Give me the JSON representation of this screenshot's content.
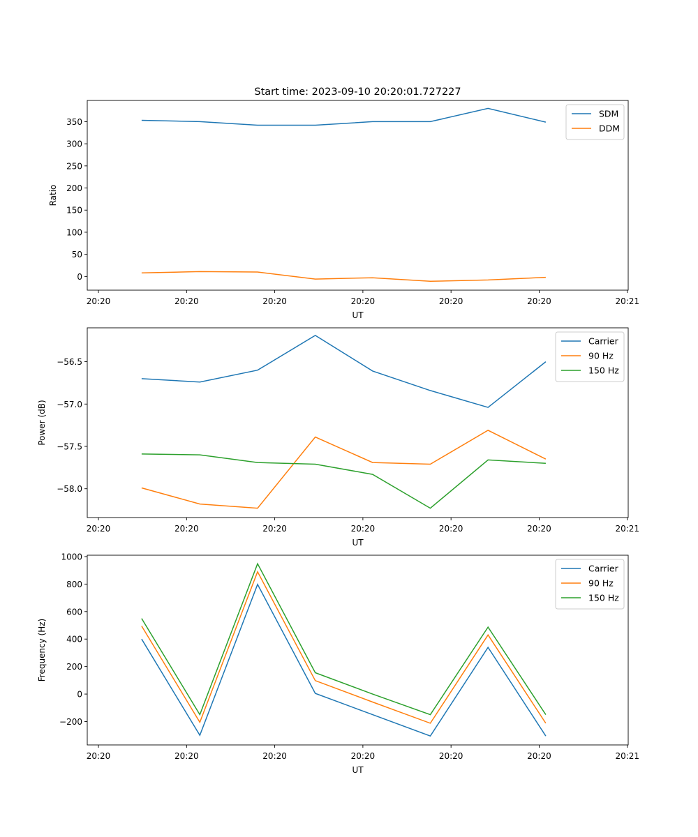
{
  "chart_data": [
    {
      "type": "line",
      "title": "Start time: 2023-09-10 20:20:01.727227",
      "xlabel": "UT",
      "ylabel": "Ratio",
      "x_unit": "seconds after 20:20:00",
      "x": [
        4.9,
        11.5,
        18.05,
        24.6,
        31.1,
        37.65,
        44.2,
        50.75
      ],
      "xlim": [
        -1.27,
        60.1
      ],
      "ylim": [
        -31,
        398
      ],
      "xticks": [
        0,
        10,
        20,
        30,
        40,
        50,
        60
      ],
      "xtick_labels": [
        "20:20",
        "20:20",
        "20:20",
        "20:20",
        "20:20",
        "20:20",
        "20:21"
      ],
      "yticks": [
        0,
        50,
        100,
        150,
        200,
        250,
        300,
        350
      ],
      "ytick_labels": [
        "0",
        "50",
        "100",
        "150",
        "200",
        "250",
        "300",
        "350"
      ],
      "legend": "top-right",
      "series": [
        {
          "name": "SDM",
          "color": "#1f77b4",
          "values": [
            353,
            350,
            342,
            342,
            350,
            350,
            380,
            349
          ]
        },
        {
          "name": "DDM",
          "color": "#ff7f0e",
          "values": [
            8,
            11,
            10,
            -6,
            -3,
            -11,
            -8,
            -2
          ]
        }
      ]
    },
    {
      "type": "line",
      "title": "",
      "xlabel": "UT",
      "ylabel": "Power (dB)",
      "x_unit": "seconds after 20:20:00",
      "x": [
        4.9,
        11.5,
        18.05,
        24.6,
        31.1,
        37.65,
        44.2,
        50.75
      ],
      "xlim": [
        -1.27,
        60.1
      ],
      "ylim": [
        -58.34,
        -56.1
      ],
      "xticks": [
        0,
        10,
        20,
        30,
        40,
        50,
        60
      ],
      "xtick_labels": [
        "20:20",
        "20:20",
        "20:20",
        "20:20",
        "20:20",
        "20:20",
        "20:21"
      ],
      "yticks": [
        -58.0,
        -57.5,
        -57.0,
        -56.5
      ],
      "ytick_labels": [
        "−58.0",
        "−57.5",
        "−57.0",
        "−56.5"
      ],
      "legend": "top-right",
      "series": [
        {
          "name": "Carrier",
          "color": "#1f77b4",
          "values": [
            -56.7,
            -56.74,
            -56.6,
            -56.19,
            -56.61,
            -56.84,
            -57.04,
            -56.5
          ]
        },
        {
          "name": "90 Hz",
          "color": "#ff7f0e",
          "values": [
            -57.99,
            -58.18,
            -58.23,
            -57.39,
            -57.69,
            -57.71,
            -57.31,
            -57.65
          ]
        },
        {
          "name": "150 Hz",
          "color": "#2ca02c",
          "values": [
            -57.59,
            -57.6,
            -57.69,
            -57.71,
            -57.83,
            -58.23,
            -57.66,
            -57.7
          ]
        }
      ]
    },
    {
      "type": "line",
      "title": "",
      "xlabel": "UT",
      "ylabel": "Frequency (Hz)",
      "x_unit": "seconds after 20:20:00",
      "x": [
        4.9,
        11.5,
        18.05,
        24.6,
        31.1,
        37.65,
        44.2,
        50.75
      ],
      "xlim": [
        -1.27,
        60.1
      ],
      "ylim": [
        -370,
        1010
      ],
      "xticks": [
        0,
        10,
        20,
        30,
        40,
        50,
        60
      ],
      "xtick_labels": [
        "20:20",
        "20:20",
        "20:20",
        "20:20",
        "20:20",
        "20:20",
        "20:21"
      ],
      "yticks": [
        -200,
        0,
        200,
        400,
        600,
        800,
        1000
      ],
      "ytick_labels": [
        "−200",
        "0",
        "200",
        "400",
        "600",
        "800",
        "1000"
      ],
      "legend": "top-right",
      "series": [
        {
          "name": "Carrier",
          "color": "#1f77b4",
          "values": [
            400,
            -300,
            798,
            5,
            -150,
            -305,
            340,
            -305
          ]
        },
        {
          "name": "90 Hz",
          "color": "#ff7f0e",
          "values": [
            495,
            -205,
            890,
            98,
            -58,
            -212,
            430,
            -212
          ]
        },
        {
          "name": "150 Hz",
          "color": "#2ca02c",
          "values": [
            550,
            -150,
            948,
            155,
            0,
            -150,
            487,
            -150
          ]
        }
      ]
    }
  ]
}
